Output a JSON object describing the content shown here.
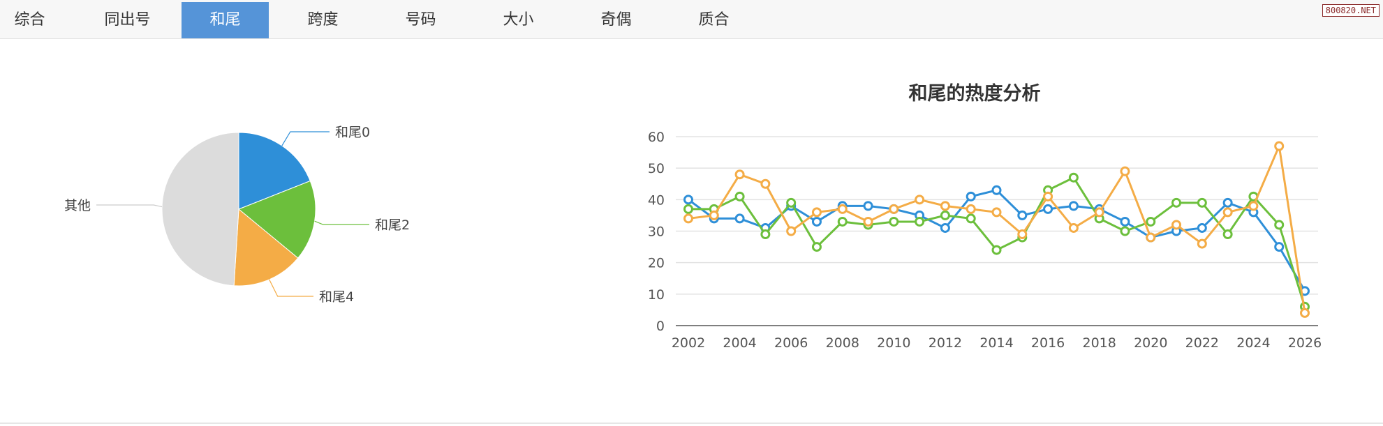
{
  "tabs": [
    {
      "label": "综合",
      "active": false
    },
    {
      "label": "同出号",
      "active": false
    },
    {
      "label": "和尾",
      "active": true
    },
    {
      "label": "跨度",
      "active": false
    },
    {
      "label": "号码",
      "active": false
    },
    {
      "label": "大小",
      "active": false
    },
    {
      "label": "奇偶",
      "active": false
    },
    {
      "label": "质合",
      "active": false
    }
  ],
  "watermark": "800820.NET",
  "colors": {
    "blue": "#2e8fd8",
    "green": "#6cbf3c",
    "orange": "#f4ac46",
    "gray": "#dcdcdc",
    "active_tab": "#5594d8"
  },
  "chart_data": [
    {
      "type": "pie",
      "title": "",
      "slices": [
        {
          "label": "和尾0",
          "value": 19,
          "color": "#2e8fd8"
        },
        {
          "label": "和尾2",
          "value": 17,
          "color": "#6cbf3c"
        },
        {
          "label": "和尾4",
          "value": 15,
          "color": "#f4ac46"
        },
        {
          "label": "其他",
          "value": 49,
          "color": "#dcdcdc"
        }
      ]
    },
    {
      "type": "line",
      "title": "和尾的热度分析",
      "xlabel": "",
      "ylabel": "",
      "ylim": [
        0,
        60
      ],
      "yticks": [
        0,
        10,
        20,
        30,
        40,
        50,
        60
      ],
      "x": [
        2002,
        2003,
        2004,
        2005,
        2006,
        2007,
        2008,
        2009,
        2010,
        2011,
        2012,
        2013,
        2014,
        2015,
        2016,
        2017,
        2018,
        2019,
        2020,
        2021,
        2022,
        2023,
        2024,
        2025,
        2026
      ],
      "xticks": [
        2002,
        2004,
        2006,
        2008,
        2010,
        2012,
        2014,
        2016,
        2018,
        2020,
        2022,
        2024,
        2026
      ],
      "grid": true,
      "series": [
        {
          "name": "和尾0",
          "color": "#2e8fd8",
          "values": [
            40,
            34,
            34,
            31,
            38,
            33,
            38,
            38,
            37,
            35,
            31,
            41,
            43,
            35,
            37,
            38,
            37,
            33,
            28,
            30,
            31,
            39,
            36,
            25,
            11
          ]
        },
        {
          "name": "和尾2",
          "color": "#6cbf3c",
          "values": [
            37,
            37,
            41,
            29,
            39,
            25,
            33,
            32,
            33,
            33,
            35,
            34,
            24,
            28,
            43,
            47,
            34,
            30,
            33,
            39,
            39,
            29,
            41,
            32,
            6
          ]
        },
        {
          "name": "和尾4",
          "color": "#f4ac46",
          "values": [
            34,
            35,
            48,
            45,
            30,
            36,
            37,
            33,
            37,
            40,
            38,
            37,
            36,
            29,
            41,
            31,
            36,
            49,
            28,
            32,
            26,
            36,
            38,
            57,
            4
          ]
        }
      ]
    }
  ]
}
